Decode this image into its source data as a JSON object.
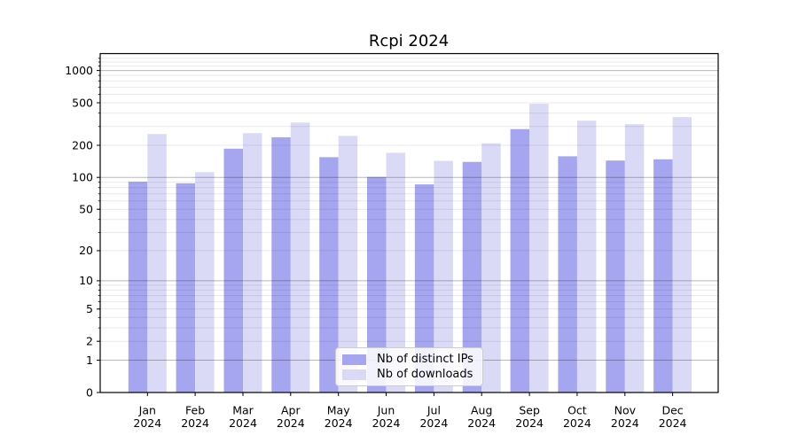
{
  "chart_data": {
    "type": "bar",
    "title": "Rcpi 2024",
    "categories": [
      "Jan",
      "Feb",
      "Mar",
      "Apr",
      "May",
      "Jun",
      "Jul",
      "Aug",
      "Sep",
      "Oct",
      "Nov",
      "Dec"
    ],
    "category_year": "2024",
    "series": [
      {
        "name": "Nb of distinct IPs",
        "color": "#a5a5f0",
        "values": [
          91,
          88,
          186,
          238,
          155,
          101,
          86,
          140,
          284,
          158,
          144,
          148
        ]
      },
      {
        "name": "Nb of downloads",
        "color": "#dadaf7",
        "values": [
          255,
          112,
          260,
          327,
          245,
          170,
          143,
          209,
          490,
          340,
          315,
          367
        ]
      }
    ],
    "xlabel": "",
    "ylabel": "",
    "y_scale": "log1p",
    "y_ticks": [
      0,
      1,
      2,
      5,
      10,
      20,
      50,
      100,
      200,
      500,
      1000
    ],
    "y_major_gridlines": [
      1,
      10,
      100,
      1000
    ],
    "ylim": [
      0,
      1430
    ],
    "grid": true,
    "legend_position": "lower center"
  },
  "colors": {
    "grid_major": "rgba(0,0,0,0.28)",
    "grid_minor": "rgba(0,0,0,0.09)",
    "spine": "#000000"
  }
}
